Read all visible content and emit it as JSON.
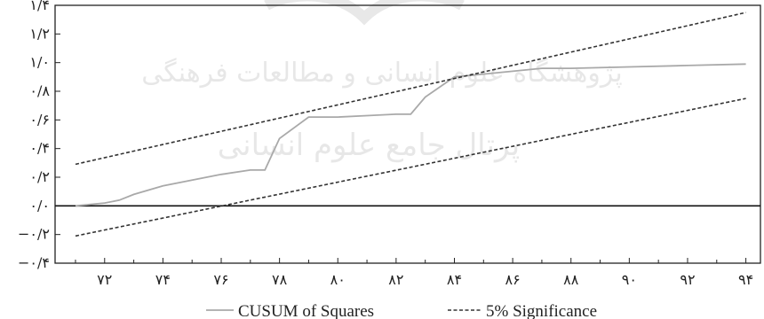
{
  "chart_data": {
    "type": "line",
    "title": "",
    "xlabel": "",
    "ylabel": "",
    "x_ticks": [
      {
        "value": 72,
        "label": "۷۲"
      },
      {
        "value": 74,
        "label": "۷۴"
      },
      {
        "value": 76,
        "label": "۷۶"
      },
      {
        "value": 78,
        "label": "۷۸"
      },
      {
        "value": 80,
        "label": "۸۰"
      },
      {
        "value": 82,
        "label": "۸۲"
      },
      {
        "value": 84,
        "label": "۸۴"
      },
      {
        "value": 86,
        "label": "۸۶"
      },
      {
        "value": 88,
        "label": "۸۸"
      },
      {
        "value": 90,
        "label": "۹۰"
      },
      {
        "value": 92,
        "label": "۹۲"
      },
      {
        "value": 94,
        "label": "۹۴"
      }
    ],
    "y_ticks": [
      {
        "value": 1.4,
        "label": "۱/۴"
      },
      {
        "value": 1.2,
        "label": "۱/۲"
      },
      {
        "value": 1.0,
        "label": "۱/۰"
      },
      {
        "value": 0.8,
        "label": "۰/۸"
      },
      {
        "value": 0.6,
        "label": "۰/۶"
      },
      {
        "value": 0.4,
        "label": "۰/۴"
      },
      {
        "value": 0.2,
        "label": "۰/۲"
      },
      {
        "value": 0.0,
        "label": "۰/۰"
      },
      {
        "value": -0.2,
        "label": "−۰/۲"
      },
      {
        "value": -0.4,
        "label": "−۰/۴"
      }
    ],
    "xlim": [
      70.3,
      94.5
    ],
    "ylim": [
      -0.4,
      1.4
    ],
    "grid": false,
    "zero_line": true,
    "legend": {
      "placement": "bottom",
      "entries": [
        {
          "name": "CUSUM of Squares",
          "style": "solid",
          "color": "#a9a9a9"
        },
        {
          "name": "5% Significance",
          "style": "dashed",
          "color": "#333333"
        }
      ]
    },
    "series": [
      {
        "name": "CUSUM of Squares",
        "style": "solid",
        "color": "#a9a9a9",
        "x": [
          71,
          72,
          72.5,
          73,
          74,
          75,
          76,
          77,
          77.5,
          78,
          79,
          80,
          81,
          82,
          82.5,
          83,
          84,
          85,
          86,
          87,
          88,
          90,
          92,
          94
        ],
        "y": [
          0.0,
          0.02,
          0.04,
          0.08,
          0.14,
          0.18,
          0.22,
          0.25,
          0.25,
          0.47,
          0.62,
          0.62,
          0.63,
          0.64,
          0.64,
          0.76,
          0.9,
          0.92,
          0.94,
          0.96,
          0.96,
          0.97,
          0.98,
          0.99
        ]
      },
      {
        "name": "5% Significance (upper)",
        "style": "dashed",
        "color": "#333333",
        "x": [
          71,
          94
        ],
        "y": [
          0.29,
          1.35
        ]
      },
      {
        "name": "5% Significance (lower)",
        "style": "dashed",
        "color": "#333333",
        "x": [
          71,
          94
        ],
        "y": [
          -0.21,
          0.75
        ]
      }
    ],
    "watermark_lines": [
      "پژوهشگاه علوم انسانی و مطالعات فرهنگی",
      "پرتال جامع علوم انسانی"
    ]
  }
}
